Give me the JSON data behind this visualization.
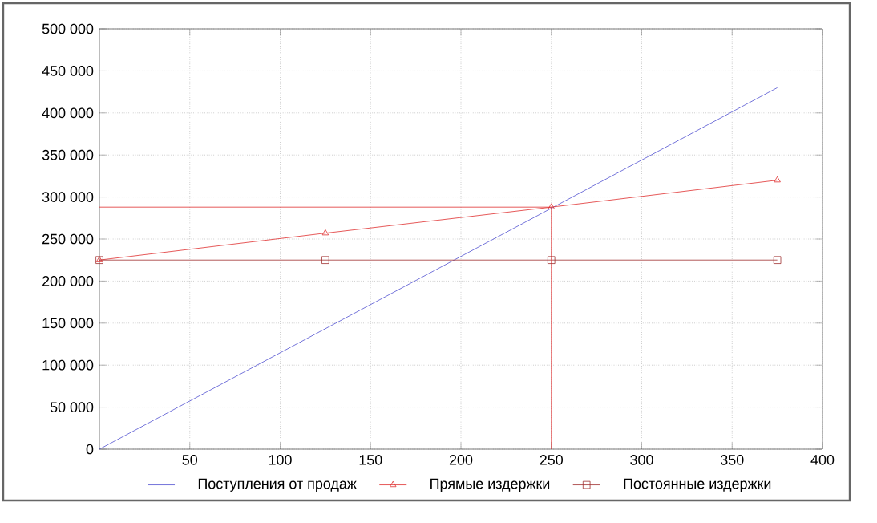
{
  "chart_data": {
    "type": "line",
    "xlim": [
      0,
      400
    ],
    "ylim": [
      0,
      500000
    ],
    "xticks": [
      50,
      100,
      150,
      200,
      250,
      300,
      350,
      400
    ],
    "yticks": [
      0,
      {
        "value": 50000,
        "label": "50 000"
      },
      {
        "value": 100000,
        "label": "100 000"
      },
      {
        "value": 150000,
        "label": "150 000"
      },
      {
        "value": 200000,
        "label": "200 000"
      },
      {
        "value": 250000,
        "label": "250 000"
      },
      {
        "value": 300000,
        "label": "300 000"
      },
      {
        "value": 350000,
        "label": "350 000"
      },
      {
        "value": 400000,
        "label": "400 000"
      },
      {
        "value": 450000,
        "label": "450 000"
      },
      {
        "value": 500000,
        "label": "500 000"
      }
    ],
    "grid": true,
    "legend": "bottom",
    "series": [
      {
        "name": "Поступления от продаж",
        "color": "#5050d0",
        "marker": "none",
        "x": [
          0,
          375
        ],
        "values": [
          0,
          430000
        ]
      },
      {
        "name": "Прямые издержки",
        "color": "#e03030",
        "marker": "triangle",
        "x": [
          0,
          125,
          250,
          375
        ],
        "values": [
          225000,
          257000,
          288000,
          320000
        ]
      },
      {
        "name": "Постоянные издержки",
        "color": "#a03030",
        "marker": "square",
        "x": [
          0,
          125,
          250,
          375
        ],
        "values": [
          225000,
          225000,
          225000,
          225000
        ]
      },
      {
        "color": "#e03030",
        "marker": "none",
        "x": [
          0,
          250,
          250
        ],
        "values": [
          288000,
          288000,
          0
        ]
      }
    ]
  }
}
